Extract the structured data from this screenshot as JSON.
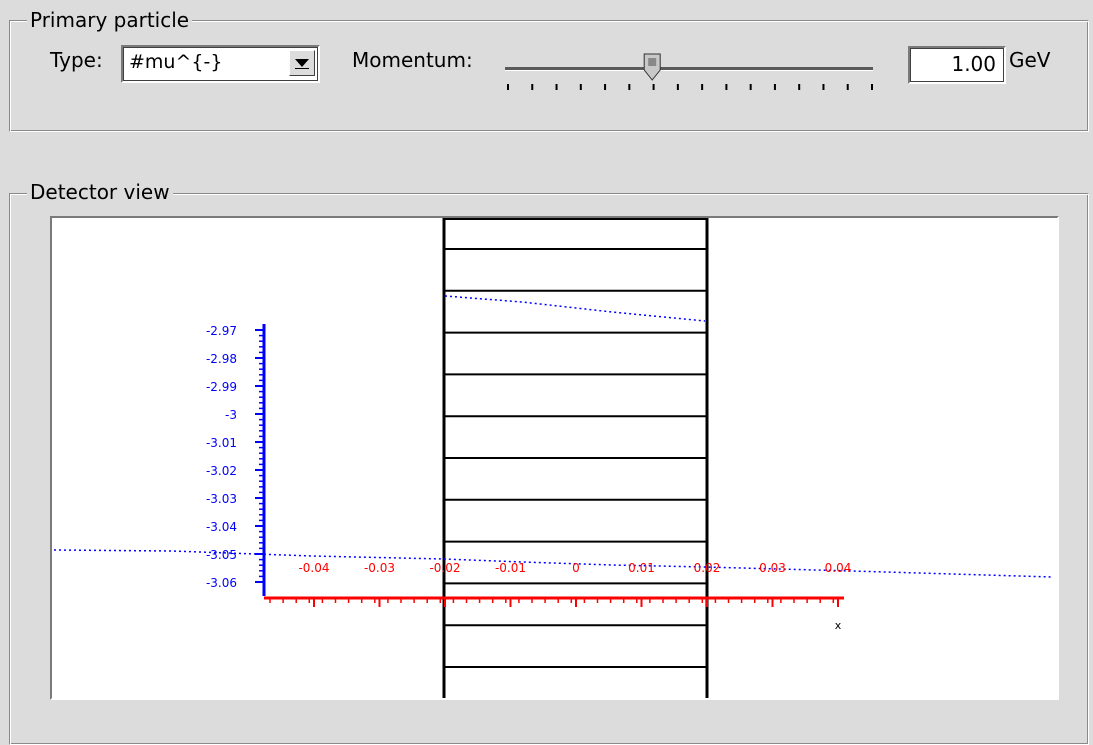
{
  "primary_particle": {
    "group_title": "Primary particle",
    "type_label": "Type:",
    "type_value": "#mu^{-}",
    "momentum_label": "Momentum:",
    "momentum_value": "1.00",
    "momentum_unit": "GeV",
    "slider_fraction": 0.4,
    "slider_tick_count": 16,
    "dropdown_icon": "chevron-down-icon"
  },
  "detector_view": {
    "group_title": "Detector view",
    "y_axis": {
      "color": "#0000ff",
      "tick_labels": [
        "-2.97",
        "-2.98",
        "-2.99",
        "-3",
        "-3.01",
        "-3.02",
        "-3.03",
        "-3.04",
        "-3.05",
        "-3.06"
      ]
    },
    "x_axis": {
      "color": "#ff0000",
      "tick_labels": [
        "-0.04",
        "-0.03",
        "-0.02",
        "-0.01",
        "0",
        "0.01",
        "0.02",
        "0.03",
        "0.04"
      ],
      "title": "x"
    },
    "track_color": "#0000ff"
  }
}
